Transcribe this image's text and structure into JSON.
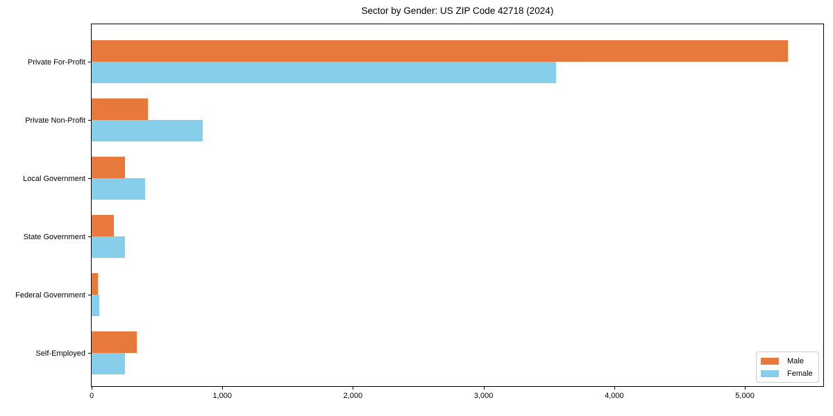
{
  "chart_data": {
    "type": "bar",
    "orientation": "horizontal",
    "title": "Sector by Gender: US ZIP Code 42718 (2024)",
    "categories": [
      "Private For-Profit",
      "Private Non-Profit",
      "Local Government",
      "State Government",
      "Federal Government",
      "Self-Employed"
    ],
    "series": [
      {
        "name": "Male",
        "color": "#e8793d",
        "values": [
          5330,
          430,
          255,
          170,
          48,
          345
        ]
      },
      {
        "name": "Female",
        "color": "#87ceeb",
        "values": [
          3555,
          850,
          410,
          255,
          58,
          255
        ]
      }
    ],
    "xlabel": "",
    "ylabel": "",
    "xlim": [
      0,
      5600
    ],
    "x_ticks": [
      0,
      1000,
      2000,
      3000,
      4000,
      5000
    ],
    "x_tick_labels": [
      "0",
      "1,000",
      "2,000",
      "3,000",
      "4,000",
      "5,000"
    ],
    "grid": false,
    "legend_position": "lower right",
    "frame": true,
    "background_color": "#ffffff",
    "text_color": "#000000"
  }
}
